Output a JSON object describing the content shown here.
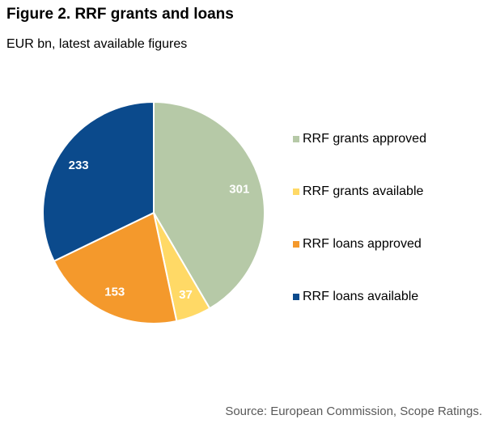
{
  "chart_data": {
    "type": "pie",
    "title": "Figure 2. RRF grants and loans",
    "subtitle": "EUR bn, latest available figures",
    "source": "Source: European Commission, Scope Ratings.",
    "categories": [
      "RRF grants approved",
      "RRF grants available",
      "RRF loans approved",
      "RRF loans available"
    ],
    "values": [
      301,
      37,
      153,
      233
    ],
    "colors": [
      "#b6c9a7",
      "#ffd966",
      "#f4992c",
      "#0b4a8c"
    ],
    "legend": "right"
  }
}
